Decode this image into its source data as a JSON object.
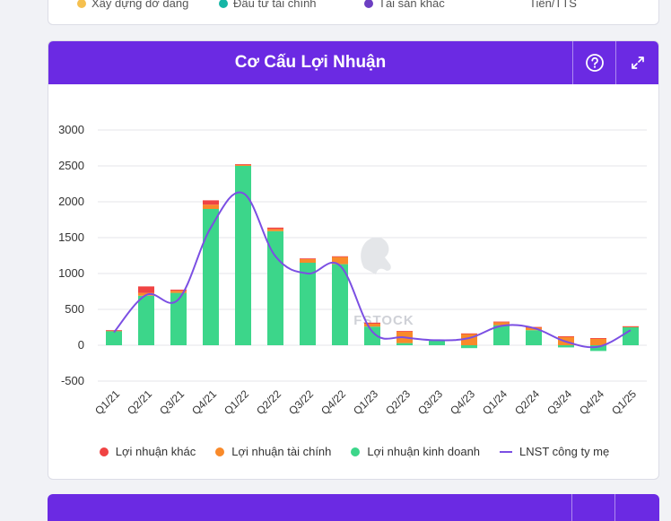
{
  "top_legend": [
    {
      "label": "Xây dựng dở dang",
      "color": "#f5c04f"
    },
    {
      "label": "Đầu tư tài chính",
      "color": "#15b5a5"
    },
    {
      "label": "Tài sản khác",
      "color": "#6c3fc2"
    },
    {
      "label": "Tiền/TTS",
      "color": ""
    }
  ],
  "card": {
    "title": "Cơ Cấu Lợi Nhuận",
    "help_icon": "help-circle-icon",
    "expand_icon": "expand-icon"
  },
  "watermark": "FSTOCK",
  "chart_data": {
    "type": "bar",
    "stacked": true,
    "title": "Cơ Cấu Lợi Nhuận",
    "categories": [
      "Q1/21",
      "Q2/21",
      "Q3/21",
      "Q4/21",
      "Q1/22",
      "Q2/22",
      "Q3/22",
      "Q4/22",
      "Q1/23",
      "Q2/23",
      "Q3/23",
      "Q4/23",
      "Q1/24",
      "Q2/24",
      "Q3/24",
      "Q4/24",
      "Q1/25"
    ],
    "ylim": [
      -500,
      3000
    ],
    "yticks": [
      3000,
      2500,
      2000,
      1500,
      1000,
      500,
      0,
      -500
    ],
    "grid": true,
    "legend_position": "bottom",
    "series": [
      {
        "name": "Lợi nhuận khác",
        "kind": "bar",
        "color": "#f04343",
        "values": [
          5,
          90,
          15,
          60,
          10,
          20,
          10,
          10,
          15,
          10,
          0,
          5,
          10,
          5,
          5,
          5,
          5
        ]
      },
      {
        "name": "Lợi nhuận tài chính",
        "kind": "bar",
        "color": "#f98a2a",
        "values": [
          5,
          40,
          30,
          60,
          15,
          30,
          50,
          100,
          40,
          160,
          5,
          160,
          40,
          40,
          120,
          95,
          10
        ]
      },
      {
        "name": "Lợi nhuận kinh doanh",
        "kind": "bar",
        "color": "#3cd68a",
        "values": [
          200,
          690,
          730,
          1900,
          2500,
          1590,
          1150,
          1130,
          260,
          30,
          70,
          -40,
          280,
          210,
          -30,
          -80,
          250
        ]
      },
      {
        "name": "LNST công ty mẹ",
        "kind": "line",
        "color": "#7b4fe3",
        "values": [
          180,
          700,
          640,
          1640,
          2120,
          1240,
          1000,
          1110,
          190,
          110,
          70,
          100,
          270,
          240,
          50,
          -20,
          210
        ]
      }
    ]
  }
}
